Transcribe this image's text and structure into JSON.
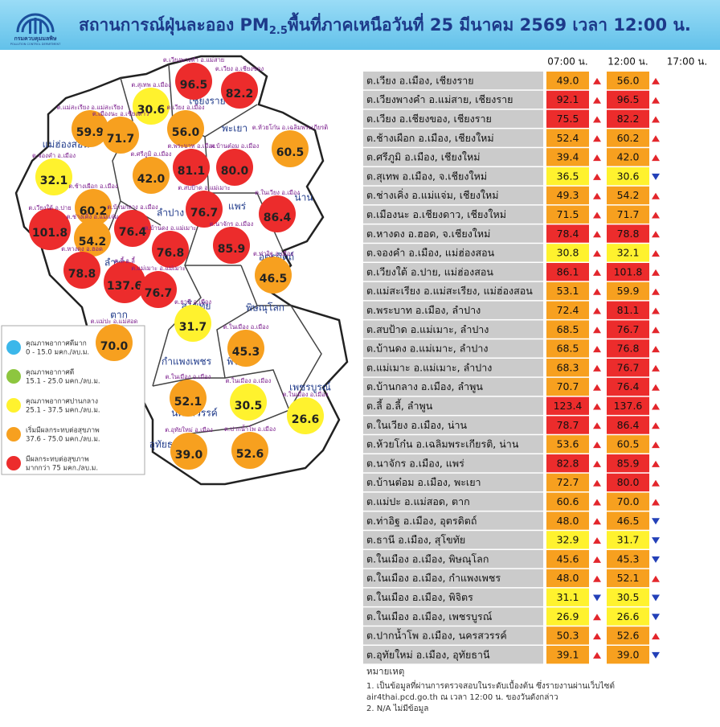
{
  "header": {
    "logo": {
      "name": "กรมควบคุมมลพิษ",
      "name_en": "POLLUTION CONTROL DEPARTMENT"
    },
    "title": {
      "before": "สถานการณ์ฝุ่นละออง PM",
      "subscript": "2.5",
      "after": "พื้นที่ภาคเหนือวันที่ 25 มีนาคม 2569 เวลา 12:00 น."
    }
  },
  "table": {
    "columns": [
      "07:00 น.",
      "12:00 น.",
      "17:00 น."
    ],
    "rows": [
      {
        "station": "ต.เวียง อ.เมือง, เชียงราย",
        "cells": [
          {
            "value": "49.0",
            "level": 3,
            "trend": "up"
          },
          {
            "value": "56.0",
            "level": 3,
            "trend": "up"
          }
        ]
      },
      {
        "station": "ต.เวียงพางคำ อ.แม่สาย, เชียงราย",
        "cells": [
          {
            "value": "92.1",
            "level": 4,
            "trend": "up"
          },
          {
            "value": "96.5",
            "level": 4,
            "trend": "up"
          }
        ]
      },
      {
        "station": "ต.เวียง อ.เชียงของ, เชียงราย",
        "cells": [
          {
            "value": "75.5",
            "level": 4,
            "trend": "up"
          },
          {
            "value": "82.2",
            "level": 4,
            "trend": "up"
          }
        ]
      },
      {
        "station": "ต.ช้างเผือก อ.เมือง, เชียงใหม่",
        "cells": [
          {
            "value": "52.4",
            "level": 3,
            "trend": "up"
          },
          {
            "value": "60.2",
            "level": 3,
            "trend": "up"
          }
        ]
      },
      {
        "station": "ต.ศรีภูมิ อ.เมือง, เชียงใหม่",
        "cells": [
          {
            "value": "39.4",
            "level": 3,
            "trend": "up"
          },
          {
            "value": "42.0",
            "level": 3,
            "trend": "up"
          }
        ]
      },
      {
        "station": "ต.สุเทพ อ.เมือง, จ.เชียงใหม่",
        "cells": [
          {
            "value": "36.5",
            "level": 2,
            "trend": "up"
          },
          {
            "value": "30.6",
            "level": 2,
            "trend": "down"
          }
        ]
      },
      {
        "station": "ต.ช่างเคิ่ง อ.แม่แจ่ม, เชียงใหม่",
        "cells": [
          {
            "value": "49.3",
            "level": 3,
            "trend": "up"
          },
          {
            "value": "54.2",
            "level": 3,
            "trend": "up"
          }
        ]
      },
      {
        "station": "ต.เมืองนะ อ.เชียงดาว, เชียงใหม่",
        "cells": [
          {
            "value": "71.5",
            "level": 3,
            "trend": "up"
          },
          {
            "value": "71.7",
            "level": 3,
            "trend": "up"
          }
        ]
      },
      {
        "station": "ต.หางดง อ.ฮอด, จ.เชียงใหม่",
        "cells": [
          {
            "value": "78.4",
            "level": 4,
            "trend": "up"
          },
          {
            "value": "78.8",
            "level": 4,
            "trend": "up"
          }
        ]
      },
      {
        "station": "ต.จองคำ อ.เมือง, แม่ฮ่องสอน",
        "cells": [
          {
            "value": "30.8",
            "level": 2,
            "trend": "up"
          },
          {
            "value": "32.1",
            "level": 2,
            "trend": "up"
          }
        ]
      },
      {
        "station": "ต.เวียงใต้ อ.ปาย, แม่ฮ่องสอน",
        "cells": [
          {
            "value": "86.1",
            "level": 4,
            "trend": "up"
          },
          {
            "value": "101.8",
            "level": 4,
            "trend": "up"
          }
        ]
      },
      {
        "station": "ต.แม่สะเรียง อ.แม่สะเรียง, แม่ฮ่องสอน",
        "cells": [
          {
            "value": "53.1",
            "level": 3,
            "trend": "up"
          },
          {
            "value": "59.9",
            "level": 3,
            "trend": "up"
          }
        ]
      },
      {
        "station": "ต.พระบาท อ.เมือง, ลำปาง",
        "cells": [
          {
            "value": "72.4",
            "level": 3,
            "trend": "up"
          },
          {
            "value": "81.1",
            "level": 4,
            "trend": "up"
          }
        ]
      },
      {
        "station": "ต.สบป้าด อ.แม่เมาะ, ลำปาง",
        "cells": [
          {
            "value": "68.5",
            "level": 3,
            "trend": "up"
          },
          {
            "value": "76.7",
            "level": 4,
            "trend": "up"
          }
        ]
      },
      {
        "station": "ต.บ้านดง อ.แม่เมาะ, ลำปาง",
        "cells": [
          {
            "value": "68.5",
            "level": 3,
            "trend": "up"
          },
          {
            "value": "76.8",
            "level": 4,
            "trend": "up"
          }
        ]
      },
      {
        "station": "ต.แม่เมาะ อ.แม่เมาะ, ลำปาง",
        "cells": [
          {
            "value": "68.3",
            "level": 3,
            "trend": "up"
          },
          {
            "value": "76.7",
            "level": 4,
            "trend": "up"
          }
        ]
      },
      {
        "station": "ต.บ้านกลาง อ.เมือง, ลำพูน",
        "cells": [
          {
            "value": "70.7",
            "level": 3,
            "trend": "up"
          },
          {
            "value": "76.4",
            "level": 4,
            "trend": "up"
          }
        ]
      },
      {
        "station": "ต.ลี้ อ.ลี้, ลำพูน",
        "cells": [
          {
            "value": "123.4",
            "level": 4,
            "trend": "up"
          },
          {
            "value": "137.6",
            "level": 4,
            "trend": "up"
          }
        ]
      },
      {
        "station": "ต.ในเวียง อ.เมือง, น่าน",
        "cells": [
          {
            "value": "78.7",
            "level": 4,
            "trend": "up"
          },
          {
            "value": "86.4",
            "level": 4,
            "trend": "up"
          }
        ]
      },
      {
        "station": "ต.ห้วยโก๋น อ.เฉลิมพระเกียรติ, น่าน",
        "cells": [
          {
            "value": "53.6",
            "level": 3,
            "trend": "up"
          },
          {
            "value": "60.5",
            "level": 3,
            "trend": "up"
          }
        ]
      },
      {
        "station": "ต.นาจักร อ.เมือง, แพร่",
        "cells": [
          {
            "value": "82.8",
            "level": 4,
            "trend": "up"
          },
          {
            "value": "85.9",
            "level": 4,
            "trend": "up"
          }
        ]
      },
      {
        "station": "ต.บ้านต๋อม อ.เมือง, พะเยา",
        "cells": [
          {
            "value": "72.7",
            "level": 3,
            "trend": "up"
          },
          {
            "value": "80.0",
            "level": 4,
            "trend": "up"
          }
        ]
      },
      {
        "station": "ต.แม่ปะ อ.แม่สอด, ตาก",
        "cells": [
          {
            "value": "60.6",
            "level": 3,
            "trend": "up"
          },
          {
            "value": "70.0",
            "level": 3,
            "trend": "up"
          }
        ]
      },
      {
        "station": "ต.ท่าอิฐ อ.เมือง, อุตรดิตถ์",
        "cells": [
          {
            "value": "48.0",
            "level": 3,
            "trend": "up"
          },
          {
            "value": "46.5",
            "level": 3,
            "trend": "down"
          }
        ]
      },
      {
        "station": "ต.ธานี อ.เมือง, สุโขทัย",
        "cells": [
          {
            "value": "32.9",
            "level": 2,
            "trend": "up"
          },
          {
            "value": "31.7",
            "level": 2,
            "trend": "down"
          }
        ]
      },
      {
        "station": "ต.ในเมือง อ.เมือง, พิษณุโลก",
        "cells": [
          {
            "value": "45.6",
            "level": 3,
            "trend": "up"
          },
          {
            "value": "45.3",
            "level": 3,
            "trend": "down"
          }
        ]
      },
      {
        "station": "ต.ในเมือง อ.เมือง, กำแพงเพชร",
        "cells": [
          {
            "value": "48.0",
            "level": 3,
            "trend": "up"
          },
          {
            "value": "52.1",
            "level": 3,
            "trend": "up"
          }
        ]
      },
      {
        "station": "ต.ในเมือง อ.เมือง, พิจิตร",
        "cells": [
          {
            "value": "31.1",
            "level": 2,
            "trend": "down"
          },
          {
            "value": "30.5",
            "level": 2,
            "trend": "down"
          }
        ]
      },
      {
        "station": "ต.ในเมือง อ.เมือง, เพชรบูรณ์",
        "cells": [
          {
            "value": "26.9",
            "level": 2,
            "trend": "up"
          },
          {
            "value": "26.6",
            "level": 2,
            "trend": "down"
          }
        ]
      },
      {
        "station": "ต.ปากน้ำโพ อ.เมือง, นครสวรรค์",
        "cells": [
          {
            "value": "50.3",
            "level": 3,
            "trend": "up"
          },
          {
            "value": "52.6",
            "level": 3,
            "trend": "up"
          }
        ]
      },
      {
        "station": "ต.อุทัยใหม่ อ.เมือง, อุทัยธานี",
        "cells": [
          {
            "value": "39.1",
            "level": 3,
            "trend": "up"
          },
          {
            "value": "39.0",
            "level": 3,
            "trend": "down"
          }
        ]
      }
    ]
  },
  "legend": {
    "items": [
      {
        "title": "คุณภาพอากาศดีมาก",
        "range": "0 - 15.0 มคก./ลบ.ม.",
        "color": "#3bb7ea"
      },
      {
        "title": "คุณภาพอากาศดี",
        "range": "15.1 - 25.0 มคก./ลบ.ม.",
        "color": "#8dc63f"
      },
      {
        "title": "คุณภาพอากาศปานกลาง",
        "range": "25.1 - 37.5 มคก./ลบ.ม.",
        "color": "#fff22e"
      },
      {
        "title": "เริ่มมีผลกระทบต่อสุขภาพ",
        "range": "37.6 - 75.0 มคก./ลบ.ม.",
        "color": "#f7a01f"
      },
      {
        "title": "มีผลกระทบต่อสุขภาพ",
        "range": "มากกว่า 75 มคก./ลบ.ม.",
        "color": "#ec2c2c"
      }
    ]
  },
  "map": {
    "provinces": [
      "เชียงราย",
      "แม่ฮ่องสอน",
      "พะเยา",
      "น่าน",
      "ลำปาง",
      "แพร่",
      "ลำพูน",
      "อุตรดิตถ์",
      "สุโขทัย",
      "ตาก",
      "พิษณุโลก",
      "กำแพงเพชร",
      "พิจิตร",
      "เพชรบูรณ์",
      "นครสวรรค์",
      "อุทัยธานี"
    ],
    "bubbles": [
      {
        "label": "ต.เวียงพางคำ อ.แม่สาย",
        "value": "96.5",
        "level": 4
      },
      {
        "label": "ต.เวียง อ.เชียงของ",
        "value": "82.2",
        "level": 4
      },
      {
        "label": "ต.สุเทพ อ.เมือง",
        "value": "30.6",
        "level": 2
      },
      {
        "label": "ต.แม่สะเรียง อ.แม่สะเรียง",
        "value": "59.9",
        "level": 3
      },
      {
        "label": "ต.เมืองนะ อ.เชียงดาว",
        "value": "71.7",
        "level": 3
      },
      {
        "label": "ต.เวียง อ.เมือง",
        "value": "56.0",
        "level": 3
      },
      {
        "label": "ต.ห้วยโก๋น อ.เฉลิมพระเกียรติ",
        "value": "60.5",
        "level": 3
      },
      {
        "label": "ต.จองคำ อ.เมือง",
        "value": "32.1",
        "level": 2
      },
      {
        "label": "ต.ศรีภูมิ อ.เมือง",
        "value": "42.0",
        "level": 3
      },
      {
        "label": "ต.พระบาท อ.เมือง",
        "value": "81.1",
        "level": 4
      },
      {
        "label": "ต.บ้านต๋อม อ.เมือง",
        "value": "80.0",
        "level": 4
      },
      {
        "label": "ต.ช้างเผือก อ.เมือง",
        "value": "60.2",
        "level": 3
      },
      {
        "label": "ต.สบป้าด อ.แม่เมาะ",
        "value": "76.7",
        "level": 4
      },
      {
        "label": "ต.ในเวียง อ.เมือง",
        "value": "86.4",
        "level": 4
      },
      {
        "label": "ต.เวียงใต้ อ.ปาย",
        "value": "101.8",
        "level": 4
      },
      {
        "label": "ต.บ้านกลาง อ.เมือง",
        "value": "76.4",
        "level": 4
      },
      {
        "label": "ต.ช่างเคิ่ง อ.แม่แจ่ม",
        "value": "54.2",
        "level": 3
      },
      {
        "label": "ต.นาจักร อ.เมือง",
        "value": "85.9",
        "level": 4
      },
      {
        "label": "ต.บ้านดง อ.แม่เมาะ",
        "value": "76.8",
        "level": 4
      },
      {
        "label": "ต.หางดง อ.ฮอด",
        "value": "78.8",
        "level": 4
      },
      {
        "label": "ต.ท่าอิฐ อ.เมือง",
        "value": "46.5",
        "level": 3
      },
      {
        "label": "ต.ลี้ อ.ลี้",
        "value": "137.6",
        "level": 4
      },
      {
        "label": "ต.แม่เมาะ อ.แม่เมาะ",
        "value": "76.7",
        "level": 4
      },
      {
        "label": "ต.ธานี อ.เมือง",
        "value": "31.7",
        "level": 2
      },
      {
        "label": "ต.แม่ปะ อ.แม่สอด",
        "value": "70.0",
        "level": 3
      },
      {
        "label": "ต.ในเมือง อ.เมือง",
        "value": "45.3",
        "level": 3
      },
      {
        "label": "ต.ในเมือง อ.เมือง",
        "value": "52.1",
        "level": 3
      },
      {
        "label": "ต.ในเมือง อ.เมือง",
        "value": "30.5",
        "level": 2
      },
      {
        "label": "ต.ในเมือง อ.เมือง",
        "value": "26.6",
        "level": 2
      },
      {
        "label": "ต.อุทัยใหม่ อ.เมือง",
        "value": "39.0",
        "level": 3
      },
      {
        "label": "ต.ปากน้ำโพ อ.เมือง",
        "value": "52.6",
        "level": 3
      }
    ]
  },
  "notes": {
    "title": "หมายเหตุ",
    "lines": [
      "1. เป็นข้อมูลที่ผ่านการตรวจสอบในระดับเบื้องต้น ซึ่งรายงานผ่านเว็บไซต์",
      "air4thai.pcd.go.th ณ เวลา 12:00 น. ของวันดังกล่าว",
      "2. N/A ไม่มีข้อมูล"
    ]
  }
}
